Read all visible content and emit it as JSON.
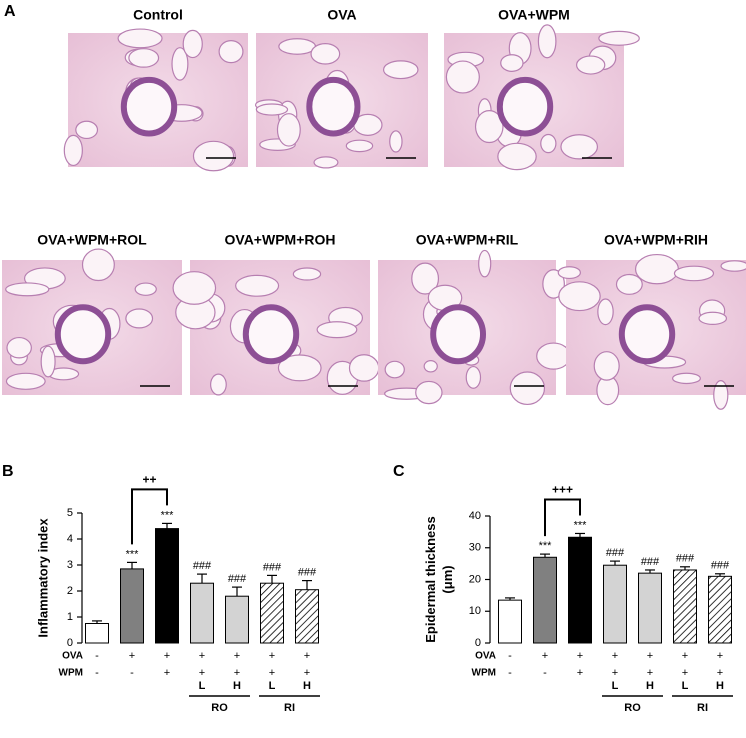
{
  "figure": {
    "panel_a": {
      "label": "A",
      "top_row": [
        {
          "title": "Control"
        },
        {
          "title": "OVA"
        },
        {
          "title": "OVA+WPM"
        }
      ],
      "bottom_row": [
        {
          "title": "OVA+WPM+ROL"
        },
        {
          "title": "OVA+WPM+ROH"
        },
        {
          "title": "OVA+WPM+RIL"
        },
        {
          "title": "OVA+WPM+RIH"
        }
      ]
    }
  },
  "chart_data": [
    {
      "type": "bar",
      "panel_label": "B",
      "y_label": [
        "Inflammatory index"
      ],
      "values": [
        0.75,
        2.85,
        4.4,
        2.3,
        1.8,
        2.3,
        2.05
      ],
      "errors": [
        0.1,
        0.25,
        0.2,
        0.35,
        0.35,
        0.3,
        0.35
      ],
      "value_annotations": [
        null,
        "***",
        "***",
        "###",
        "###",
        "###",
        "###"
      ],
      "colors": [
        "#ffffff",
        "#808080",
        "#000000",
        "#d3d3d3",
        "#d3d3d3",
        "#ffffff",
        "#ffffff"
      ],
      "hatched": [
        false,
        false,
        false,
        false,
        false,
        true,
        true
      ],
      "ylim": [
        0,
        5
      ],
      "yticks": [
        0,
        1,
        2,
        3,
        4,
        5
      ],
      "bracket": {
        "label": "++"
      },
      "treatments": [
        {
          "name": "OVA",
          "values": [
            "-",
            "+",
            "+",
            "+",
            "+",
            "+",
            "+"
          ]
        },
        {
          "name": "WPM",
          "values": [
            "-",
            "-",
            "+",
            "+",
            "+",
            "+",
            "+"
          ]
        }
      ],
      "groups": [
        {
          "name": "RO",
          "doses": [
            "L",
            "H"
          ]
        },
        {
          "name": "RI",
          "doses": [
            "L",
            "H"
          ]
        }
      ]
    },
    {
      "type": "bar",
      "panel_label": "C",
      "y_label": [
        "Epidermal thickness",
        "(μm)"
      ],
      "values": [
        13.5,
        27,
        33.3,
        24.5,
        22,
        23,
        21
      ],
      "errors": [
        0.7,
        1,
        1.2,
        1.3,
        1,
        1,
        0.8
      ],
      "value_annotations": [
        null,
        "***",
        "***",
        "###",
        "###",
        "###",
        "###"
      ],
      "colors": [
        "#ffffff",
        "#808080",
        "#000000",
        "#d3d3d3",
        "#d3d3d3",
        "#ffffff",
        "#ffffff"
      ],
      "hatched": [
        false,
        false,
        false,
        false,
        false,
        true,
        true
      ],
      "ylim": [
        0,
        40
      ],
      "yticks": [
        0,
        10,
        20,
        30,
        40
      ],
      "bracket": {
        "label": "+++"
      },
      "treatments": [
        {
          "name": "OVA",
          "values": [
            "-",
            "+",
            "+",
            "+",
            "+",
            "+",
            "+"
          ]
        },
        {
          "name": "WPM",
          "values": [
            "-",
            "-",
            "+",
            "+",
            "+",
            "+",
            "+"
          ]
        }
      ],
      "groups": [
        {
          "name": "RO",
          "doses": [
            "L",
            "H"
          ]
        },
        {
          "name": "RI",
          "doses": [
            "L",
            "H"
          ]
        }
      ]
    }
  ]
}
